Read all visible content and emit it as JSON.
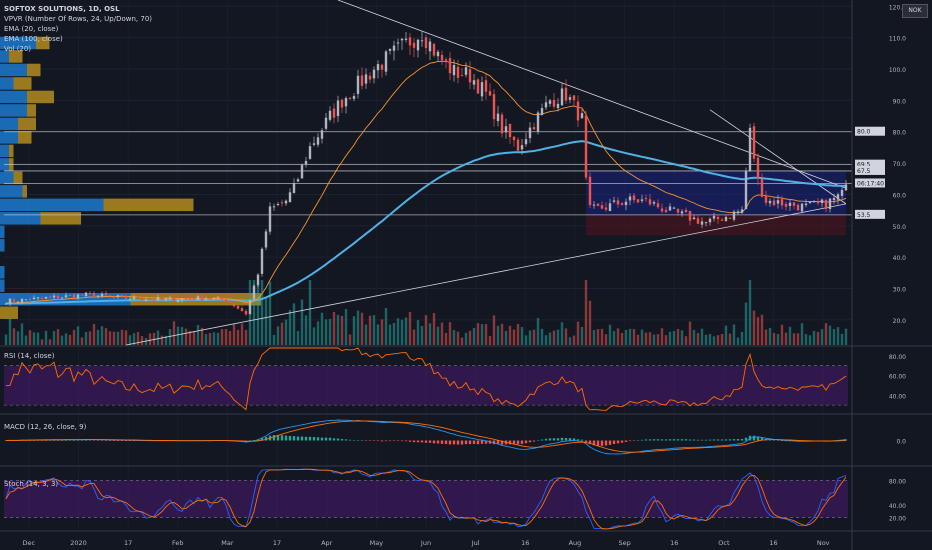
{
  "header": {
    "title": "SOFTOX SOLUTIONS, 1D, OSL",
    "currency_badge": "NOK"
  },
  "legend": [
    "VPVR (Number Of Rows, 24, Up/Down, 70)",
    "EMA (20, close)",
    "EMA (100, close)",
    "Vol (20)"
  ],
  "colors": {
    "background": "#131722",
    "up": "#b2b5be",
    "down": "#ef5350",
    "ema20": "#f7922f",
    "ema100": "#4fb2e4",
    "vpvr_up": "#1e88e5",
    "vpvr_down": "#c99b1f",
    "rsi": "#ff6d00",
    "macd_line": "#2196f3",
    "signal_line": "#ff6d00",
    "stoch_k": "#2962ff",
    "stoch_d": "#ff6d00",
    "band": "#6a1b9a"
  },
  "chart_data": [
    {
      "type": "candlestick",
      "title": "SOFTOX SOLUTIONS, 1D, OSL",
      "ylim": [
        12,
        122
      ],
      "yticks": [
        20.0,
        30.0,
        40.0,
        50.0,
        60.0,
        70.0,
        80.0,
        90.0,
        100.0,
        110.0,
        120.0
      ],
      "x_labels": [
        "Dec",
        "2020",
        "17",
        "Feb",
        "Mar",
        "17",
        "Apr",
        "May",
        "Jun",
        "Jul",
        "16",
        "Aug",
        "Sep",
        "16",
        "Oct",
        "16",
        "Nov"
      ],
      "price_keypoints": [
        [
          0,
          26
        ],
        [
          10,
          27
        ],
        [
          20,
          28
        ],
        [
          30,
          27
        ],
        [
          40,
          26.5
        ],
        [
          50,
          27
        ],
        [
          55,
          26.5
        ],
        [
          60,
          22
        ],
        [
          63,
          35
        ],
        [
          66,
          55
        ],
        [
          70,
          58
        ],
        [
          72,
          62
        ],
        [
          76,
          75
        ],
        [
          80,
          83
        ],
        [
          84,
          90
        ],
        [
          88,
          95
        ],
        [
          92,
          100
        ],
        [
          96,
          104
        ],
        [
          100,
          108
        ],
        [
          104,
          112
        ],
        [
          108,
          104
        ],
        [
          112,
          99
        ],
        [
          116,
          98
        ],
        [
          120,
          92
        ],
        [
          124,
          81
        ],
        [
          128,
          75
        ],
        [
          132,
          83
        ],
        [
          136,
          90
        ],
        [
          140,
          92
        ],
        [
          142,
          88
        ],
        [
          144,
          84
        ],
        [
          145,
          64
        ],
        [
          146,
          55
        ],
        [
          150,
          56
        ],
        [
          155,
          58
        ],
        [
          160,
          58
        ],
        [
          165,
          55
        ],
        [
          170,
          53
        ],
        [
          175,
          51
        ],
        [
          180,
          53
        ],
        [
          184,
          55
        ],
        [
          186,
          80
        ],
        [
          188,
          64
        ],
        [
          190,
          58
        ],
        [
          195,
          57
        ],
        [
          200,
          56
        ],
        [
          205,
          57
        ],
        [
          209,
          60
        ],
        [
          210,
          65
        ]
      ],
      "horizontal_levels": [
        {
          "label": "80.0",
          "value": 80.0
        },
        {
          "label": "69.5",
          "value": 69.5
        },
        {
          "label": "67.5",
          "value": 67.5
        },
        {
          "label": "06:17:40",
          "value": 63.5
        },
        {
          "label": "53.5",
          "value": 53.5
        }
      ],
      "last_price": 64.0,
      "ema20_last": 60.0,
      "ema100_last": 58.0
    },
    {
      "type": "line",
      "title": "RSI (14, close)",
      "ylim": [
        22,
        88
      ],
      "yticks": [
        40.0,
        60.0,
        80.0
      ],
      "band": [
        30,
        70
      ]
    },
    {
      "type": "histogram",
      "title": "MACD (12, 26, close, 9)",
      "yticks": [
        0.0
      ]
    },
    {
      "type": "line",
      "title": "Stoch (14, 3, 3)",
      "ylim": [
        0,
        100
      ],
      "yticks": [
        20.0,
        40.0,
        80.0
      ],
      "band": [
        20,
        80
      ]
    }
  ]
}
